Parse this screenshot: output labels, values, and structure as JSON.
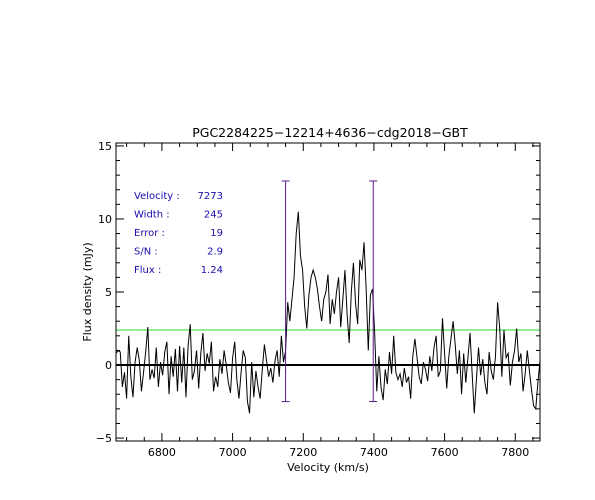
{
  "chart_data": {
    "type": "line",
    "title": "PGC2284225−12214+4636−cdg2018−GBT",
    "xlabel": "Velocity (km/s)",
    "ylabel": "Flux density (mJy)",
    "xlim": [
      6670,
      7870
    ],
    "ylim": [
      -5.2,
      15.2
    ],
    "xticks": [
      6800,
      7000,
      7200,
      7400,
      7600,
      7800
    ],
    "yticks": [
      -5,
      0,
      5,
      10,
      15
    ],
    "grid": false,
    "annotations": [
      {
        "label": "Velocity :",
        "value": "7273"
      },
      {
        "label": "Width :",
        "value": "245"
      },
      {
        "label": "Error :",
        "value": "19"
      },
      {
        "label": "S/N :",
        "value": "2.9"
      },
      {
        "label": "Flux :",
        "value": "1.24"
      }
    ],
    "reference_lines": {
      "zero": 0,
      "rms_level": 2.4,
      "rms_color": "#22dd22",
      "edge_marker_color": "#5b1a8a",
      "edges": [
        7150,
        7398
      ],
      "edge_range": [
        -2.5,
        12.6
      ]
    },
    "series": [
      {
        "color": "#000000",
        "x": [
          6670,
          6676,
          6682,
          6688,
          6694,
          6700,
          6706,
          6712,
          6718,
          6724,
          6730,
          6736,
          6742,
          6748,
          6754,
          6760,
          6766,
          6772,
          6778,
          6784,
          6790,
          6796,
          6802,
          6808,
          6814,
          6820,
          6826,
          6832,
          6838,
          6844,
          6850,
          6856,
          6862,
          6868,
          6874,
          6880,
          6886,
          6892,
          6898,
          6904,
          6910,
          6916,
          6922,
          6928,
          6934,
          6940,
          6946,
          6952,
          6958,
          6964,
          6970,
          6976,
          6982,
          6988,
          6994,
          7000,
          7006,
          7012,
          7018,
          7024,
          7030,
          7036,
          7042,
          7048,
          7054,
          7060,
          7066,
          7072,
          7078,
          7084,
          7090,
          7096,
          7102,
          7108,
          7114,
          7120,
          7126,
          7132,
          7138,
          7144,
          7150,
          7156,
          7162,
          7168,
          7174,
          7180,
          7186,
          7192,
          7198,
          7204,
          7210,
          7216,
          7222,
          7228,
          7234,
          7240,
          7246,
          7252,
          7258,
          7264,
          7270,
          7276,
          7282,
          7288,
          7294,
          7300,
          7306,
          7312,
          7318,
          7324,
          7330,
          7336,
          7342,
          7348,
          7354,
          7360,
          7366,
          7372,
          7378,
          7384,
          7390,
          7396,
          7402,
          7408,
          7414,
          7420,
          7426,
          7432,
          7438,
          7444,
          7450,
          7456,
          7462,
          7468,
          7474,
          7480,
          7486,
          7492,
          7498,
          7504,
          7510,
          7516,
          7522,
          7528,
          7534,
          7540,
          7546,
          7552,
          7558,
          7564,
          7570,
          7576,
          7582,
          7588,
          7594,
          7600,
          7606,
          7612,
          7618,
          7624,
          7630,
          7636,
          7642,
          7648,
          7654,
          7660,
          7666,
          7672,
          7678,
          7684,
          7690,
          7696,
          7702,
          7708,
          7714,
          7720,
          7726,
          7732,
          7738,
          7744,
          7750,
          7756,
          7762,
          7768,
          7774,
          7780,
          7786,
          7792,
          7798,
          7804,
          7810,
          7816,
          7822,
          7828,
          7834,
          7840,
          7846,
          7852,
          7858,
          7864,
          7870
        ],
        "y": [
          0.8,
          1.0,
          0.9,
          -1.5,
          -0.5,
          -2.3,
          2.0,
          -0.8,
          -2.2,
          0.2,
          1.2,
          0.3,
          -1.8,
          -0.5,
          0.9,
          2.6,
          -1.0,
          -0.3,
          -0.9,
          1.2,
          -1.5,
          0.2,
          -0.7,
          0.9,
          1.6,
          -2.0,
          0.6,
          -0.8,
          1.1,
          -1.8,
          1.3,
          -1.2,
          1.2,
          -2.2,
          1.3,
          2.8,
          -1.0,
          -0.4,
          1.0,
          -1.6,
          0.8,
          2.2,
          -0.4,
          0.8,
          0.1,
          1.6,
          -1.8,
          -0.8,
          -1.5,
          0.4,
          -0.6,
          1.0,
          0.0,
          -1.2,
          -1.9,
          0.5,
          1.6,
          -1.0,
          -2.3,
          -0.5,
          1.0,
          0.5,
          -2.5,
          -3.3,
          0.2,
          -2.2,
          -0.4,
          -1.5,
          -2.3,
          -0.3,
          1.4,
          0.3,
          -0.8,
          -0.2,
          -1.2,
          0.3,
          1.0,
          -0.8,
          2.0,
          0.2,
          1.0,
          4.3,
          3.0,
          4.5,
          6.0,
          9.0,
          10.5,
          7.5,
          6.5,
          4.0,
          2.5,
          4.8,
          6.0,
          6.5,
          6.0,
          5.2,
          4.0,
          3.0,
          4.5,
          5.0,
          6.2,
          2.8,
          4.5,
          3.5,
          5.0,
          6.0,
          2.6,
          4.5,
          6.5,
          3.5,
          1.5,
          5.0,
          7.0,
          4.2,
          2.8,
          7.2,
          6.5,
          8.4,
          5.2,
          1.0,
          4.8,
          5.2,
          2.2,
          -1.8,
          0.6,
          -1.5,
          -2.4,
          -0.3,
          -1.3,
          0.9,
          -0.6,
          2.0,
          -0.5,
          -1.0,
          -0.6,
          -1.5,
          -0.2,
          -1.2,
          -0.8,
          -2.3,
          0.6,
          1.8,
          0.5,
          -0.8,
          -1.3,
          0.2,
          -0.3,
          -1.1,
          0.6,
          -0.4,
          1.2,
          2.0,
          -0.8,
          -0.4,
          3.2,
          0.8,
          -1.6,
          0.6,
          1.8,
          3.0,
          1.4,
          -0.6,
          1.0,
          -2.0,
          0.8,
          -1.2,
          0.5,
          2.2,
          -0.6,
          -3.3,
          -1.0,
          1.2,
          -0.7,
          0.4,
          -1.2,
          -2.0,
          0.9,
          -0.4,
          -1.0,
          0.6,
          4.3,
          2.5,
          -0.8,
          2.4,
          0.5,
          0.8,
          -1.4,
          0.2,
          1.0,
          2.5,
          0.2,
          0.8,
          -1.8,
          -0.6,
          1.0,
          -0.4,
          -1.7,
          -2.8,
          -3.0,
          -1.2,
          0.3
        ]
      }
    ]
  }
}
